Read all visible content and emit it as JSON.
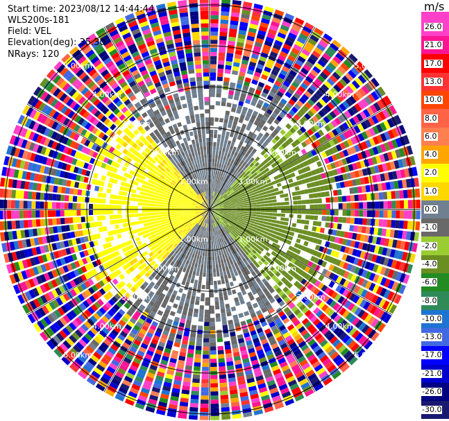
{
  "header": {
    "start_time": "Start time: 2023/08/12 14:44:44",
    "instrument": "WLS200s-181",
    "field": "Field: VEL",
    "elevation": "Elevation(deg): 35.30",
    "nrays": "NRays: 120"
  },
  "chart_data": {
    "type": "heatmap",
    "projection": "polar PPI",
    "field": "VEL",
    "unit": "m/s",
    "n_rays": 120,
    "range_rings": [
      "1.00km",
      "2.00km",
      "3.00km",
      "4.00km",
      "5.00km"
    ],
    "spoke_interval_deg": 30,
    "colorbar": {
      "unit": "m/s",
      "labels": [
        "26.0",
        "21.0",
        "17.0",
        "13.0",
        "10.0",
        "8.0",
        "6.0",
        "4.0",
        "2.0",
        "1.0",
        "0.0",
        "-1.0",
        "-2.0",
        "-4.0",
        "-6.0",
        "-8.0",
        "-10.0",
        "-13.0",
        "-17.0",
        "-21.0",
        "-26.0",
        "-30.0"
      ],
      "colors": [
        "#ff40c8",
        "#ff1493",
        "#ff0000",
        "#ff3333",
        "#ff4500",
        "#ff6347",
        "#ff7f50",
        "#ffa500",
        "#ffff00",
        "#ffd700",
        "#708090",
        "#696969",
        "#9acd32",
        "#6b8e23",
        "#228b22",
        "#2e8b57",
        "#1e74d0",
        "#4169e1",
        "#0000ff",
        "#0000cd",
        "#000080",
        "#191970"
      ]
    },
    "pattern": "near range: positive (yellow) to the west, negative (green) to the east, ~0 (gray) north/south; beyond ~3 km noisy values over full scale"
  }
}
